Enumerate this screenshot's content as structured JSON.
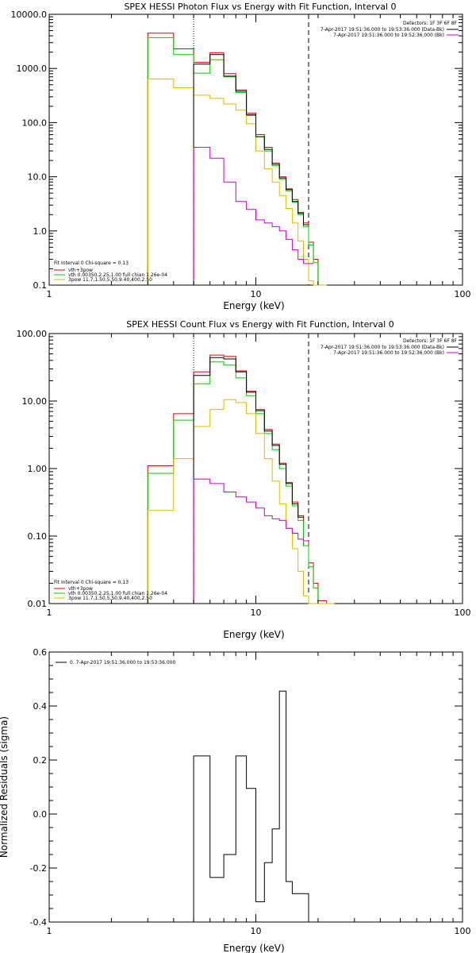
{
  "chart_data": [
    {
      "type": "line",
      "title": "SPEX HESSI Photon Flux vs Energy with Fit Function, Interval 0",
      "xlabel": "Energy  (keV)",
      "ylabel": "",
      "xscale": "log",
      "yscale": "log",
      "xlim": [
        1,
        100
      ],
      "ylim": [
        0.1,
        10000
      ],
      "xtick_labels": [
        "1",
        "10",
        "100"
      ],
      "ytick_labels": [
        "0.1",
        "1.0",
        "10.0",
        "100.0",
        "1000.0",
        "10000.0"
      ],
      "ytick_values": [
        0.1,
        1,
        10,
        100,
        1000,
        10000
      ],
      "vlines": [
        {
          "x": 5.0,
          "style": "dotted"
        },
        {
          "x": 18.0,
          "style": "dashed"
        }
      ],
      "legend_top": {
        "header": "Detectors: 1F 3F 6F 8F",
        "entries": [
          {
            "label": "7-Apr-2017 19:51:36.000 to 19:53:36.000 (Data-Bk)",
            "color": "#000000"
          },
          {
            "label": "7-Apr-2017 19:51:36.000 to 19:52:36.000 (Bk)",
            "color": "#cc00cc"
          }
        ]
      },
      "legend_bottom": {
        "header": "Fit Interval 0   Chi-square = 0.13",
        "entries": [
          {
            "label": "vth+3pow",
            "color": "#dd0000"
          },
          {
            "label": "vth 0.00350,2.25,1.00  full chian 1.26e-04",
            "color": "#00cc00"
          },
          {
            "label": "3pow 11.7,1.50,5.50,9.40,400,2.50",
            "color": "#ddbb00"
          }
        ]
      },
      "edges": [
        3,
        4,
        5,
        6,
        7,
        8,
        9,
        10,
        11,
        12,
        13,
        14,
        15,
        16,
        17,
        18,
        19,
        20,
        22
      ],
      "series": [
        {
          "name": "vth+3pow",
          "color": "#dd0000",
          "values": [
            4500,
            2300,
            1300,
            1950,
            800,
            400,
            150,
            60,
            35,
            18,
            10,
            6,
            3.8,
            2.2,
            1.4,
            0.62,
            0.3,
            0.1
          ]
        },
        {
          "name": "vth",
          "color": "#00cc00",
          "values": [
            3700,
            1800,
            820,
            1450,
            700,
            360,
            135,
            55,
            30,
            16,
            9,
            5.5,
            3.4,
            2.0,
            1.2,
            0.55,
            0.26,
            0.1
          ]
        },
        {
          "name": "3pow",
          "color": "#ddbb00",
          "values": [
            640,
            440,
            320,
            280,
            220,
            170,
            95,
            30,
            14,
            8,
            4.5,
            2.6,
            1.4,
            0.65,
            0.3,
            0.12,
            0.1,
            0.1
          ]
        },
        {
          "name": "data",
          "color": "#000000",
          "values": [
            null,
            null,
            1200,
            1800,
            720,
            380,
            140,
            55,
            32,
            17,
            9.5,
            5.8,
            3.5,
            2.1,
            1.3,
            null,
            null,
            null
          ]
        },
        {
          "name": "bk",
          "color": "#cc00cc",
          "values": [
            null,
            null,
            35,
            22,
            8,
            3.5,
            2.5,
            1.6,
            1.4,
            1.2,
            1.0,
            0.7,
            0.45,
            0.3,
            0.25,
            0.25,
            null,
            null
          ]
        }
      ]
    },
    {
      "type": "line",
      "title": "SPEX HESSI Count Flux vs Energy with Fit Function, Interval 0",
      "xlabel": "Energy  (keV)",
      "ylabel": "",
      "xscale": "log",
      "yscale": "log",
      "xlim": [
        1,
        100
      ],
      "ylim": [
        0.01,
        100
      ],
      "xtick_labels": [
        "1",
        "10",
        "100"
      ],
      "ytick_labels": [
        "0.01",
        "0.10",
        "1.00",
        "10.00",
        "100.00"
      ],
      "ytick_values": [
        0.01,
        0.1,
        1,
        10,
        100
      ],
      "vlines": [
        {
          "x": 5.0,
          "style": "dotted"
        },
        {
          "x": 18.0,
          "style": "dashed"
        }
      ],
      "legend_top": {
        "header": "Detectors: 1F 3F 6F 8F",
        "entries": [
          {
            "label": "7-Apr-2017 19:51:36.000 to 19:53:36.000 (Data-Bk)",
            "color": "#000000"
          },
          {
            "label": "7-Apr-2017 19:51:36.000 to 19:52:36.000 (Bk)",
            "color": "#cc00cc"
          }
        ]
      },
      "legend_bottom": {
        "header": "Fit Interval 0   Chi-square = 0.13",
        "entries": [
          {
            "label": "vth+3pow",
            "color": "#dd0000"
          },
          {
            "label": "vth 0.00350,2.25,1.00  full chian 1.26e-04",
            "color": "#00cc00"
          },
          {
            "label": "3pow 11.7,1.50,5.50,9.40,400,2.50",
            "color": "#ddbb00"
          }
        ]
      },
      "edges": [
        3,
        4,
        5,
        6,
        7,
        8,
        9,
        10,
        11,
        12,
        13,
        14,
        15,
        16,
        17,
        18,
        19,
        20,
        22,
        24
      ],
      "series": [
        {
          "name": "vth+3pow",
          "color": "#dd0000",
          "values": [
            1.1,
            6.5,
            27,
            48,
            46,
            28,
            14,
            7.5,
            3.8,
            2.3,
            1.2,
            0.62,
            0.32,
            0.2,
            0.085,
            0.04,
            0.02,
            0.011,
            0.01
          ]
        },
        {
          "name": "vth",
          "color": "#00cc00",
          "values": [
            0.85,
            5.2,
            18,
            38,
            34,
            22,
            12,
            6.5,
            3.3,
            1.9,
            1.0,
            0.55,
            0.28,
            0.17,
            0.072,
            0.035,
            0.017,
            0.01,
            0.01
          ]
        },
        {
          "name": "3pow",
          "color": "#ddbb00",
          "values": [
            0.24,
            1.4,
            4.2,
            7.5,
            10.5,
            9.5,
            6.5,
            3.3,
            1.4,
            0.65,
            0.3,
            0.13,
            0.065,
            0.03,
            0.013,
            0.01,
            0.01,
            0.01,
            0.01
          ]
        },
        {
          "name": "data",
          "color": "#000000",
          "values": [
            null,
            null,
            24,
            44,
            42,
            27,
            13.5,
            7.2,
            3.6,
            2.2,
            1.15,
            0.6,
            0.3,
            0.19,
            null,
            null,
            null,
            null,
            null
          ]
        },
        {
          "name": "bk",
          "color": "#cc00cc",
          "values": [
            null,
            null,
            0.7,
            0.6,
            0.45,
            0.38,
            0.32,
            0.26,
            0.2,
            0.18,
            0.17,
            0.13,
            0.11,
            0.09,
            0.085,
            null,
            null,
            null,
            null
          ]
        }
      ]
    },
    {
      "type": "line",
      "title": "",
      "xlabel": "Energy  (keV)",
      "ylabel": "Normalized Residuals  (sigma)",
      "xscale": "log",
      "yscale": "linear",
      "xlim": [
        1,
        100
      ],
      "ylim": [
        -0.4,
        0.6
      ],
      "xtick_labels": [
        "1",
        "10",
        "100"
      ],
      "ytick_labels": [
        "-0.4",
        "-0.2",
        "0.0",
        "0.2",
        "0.4",
        "0.6"
      ],
      "ytick_values": [
        -0.4,
        -0.2,
        0.0,
        0.2,
        0.4,
        0.6
      ],
      "legend_top": {
        "header": "",
        "entries": [
          {
            "label": "0.  7-Apr-2017 19:51:36.000 to 19:53:36.000",
            "color": "#000000"
          }
        ]
      },
      "edges": [
        5,
        6,
        7,
        8,
        9,
        10,
        11,
        12,
        13,
        14,
        15,
        16,
        17,
        18
      ],
      "series": [
        {
          "name": "0.  7-Apr-2017 19:51:36.000 to 19:53:36.000",
          "color": "#000000",
          "values": [
            0.215,
            -0.235,
            -0.15,
            0.215,
            0.095,
            -0.325,
            -0.18,
            -0.055,
            0.455,
            -0.25,
            -0.295,
            -0.295,
            -0.295
          ]
        }
      ]
    }
  ]
}
